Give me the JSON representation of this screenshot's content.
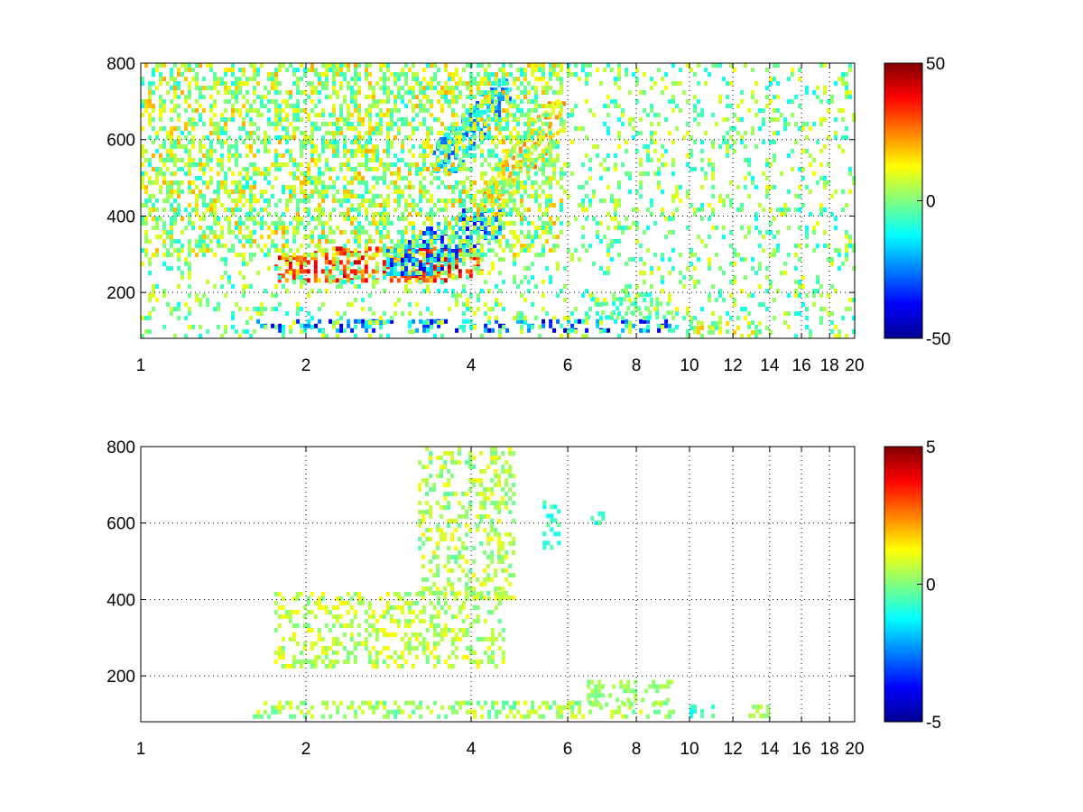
{
  "figure": {
    "background": "#ffffff",
    "colormap": "jet"
  },
  "chart_data": [
    {
      "type": "heatmap",
      "title": "",
      "xlabel": "",
      "ylabel": "",
      "xlim": [
        1,
        20
      ],
      "ylim": [
        80,
        800
      ],
      "x_scale": "log",
      "xticks": [
        1,
        2,
        4,
        6,
        8,
        10,
        12,
        14,
        16,
        18,
        20
      ],
      "xtick_labels": [
        "1",
        "2",
        "4",
        "6",
        "8",
        "10",
        "12",
        "14",
        "16",
        "18",
        "20"
      ],
      "yticks": [
        200,
        400,
        600,
        800
      ],
      "ytick_labels": [
        "200",
        "400",
        "600",
        "800"
      ],
      "grid": true,
      "colorbar": {
        "min": -50,
        "max": 50,
        "ticks": [
          -50,
          0,
          50
        ],
        "tick_labels": [
          "-50",
          "0",
          "50"
        ]
      },
      "features": [
        {
          "shape": "band",
          "x": [
            1.75,
            4.2
          ],
          "y": [
            230,
            320
          ],
          "value": 30,
          "spread": 15
        },
        {
          "shape": "band",
          "x": [
            2.8,
            4.6
          ],
          "y": [
            250,
            420
          ],
          "value": -25,
          "spread": 15
        },
        {
          "shape": "band",
          "x": [
            4.2,
            5.9
          ],
          "y": [
            420,
            700
          ],
          "value": 15,
          "spread": 12
        },
        {
          "shape": "band",
          "x": [
            3.4,
            4.7
          ],
          "y": [
            520,
            760
          ],
          "value": -18,
          "spread": 12
        },
        {
          "shape": "rect",
          "x": [
            1.6,
            9.4
          ],
          "y": [
            95,
            130
          ],
          "value": -25,
          "spread": 20
        },
        {
          "shape": "rect",
          "x": [
            6.5,
            9.3
          ],
          "y": [
            130,
            200
          ],
          "value": -5,
          "spread": 8
        },
        {
          "shape": "rect",
          "x": [
            10,
            14
          ],
          "y": [
            95,
            125
          ],
          "value": 5,
          "spread": 15
        },
        {
          "shape": "rect",
          "x": [
            1,
            5.8
          ],
          "y": [
            300,
            800
          ],
          "value": 6,
          "spread": 15
        },
        {
          "shape": "rect",
          "x": [
            1,
            20
          ],
          "y": [
            80,
            800
          ],
          "value": 0,
          "spread": 12
        }
      ]
    },
    {
      "type": "heatmap",
      "title": "",
      "xlabel": "",
      "ylabel": "",
      "xlim": [
        1,
        20
      ],
      "ylim": [
        80,
        800
      ],
      "x_scale": "log",
      "xticks": [
        1,
        2,
        4,
        6,
        8,
        10,
        12,
        14,
        16,
        18,
        20
      ],
      "xtick_labels": [
        "1",
        "2",
        "4",
        "6",
        "8",
        "10",
        "12",
        "14",
        "16",
        "18",
        "20"
      ],
      "yticks": [
        200,
        400,
        600,
        800
      ],
      "ytick_labels": [
        "200",
        "400",
        "600",
        "800"
      ],
      "grid": true,
      "colorbar": {
        "min": -5,
        "max": 5,
        "ticks": [
          -5,
          0,
          5
        ],
        "tick_labels": [
          "-5",
          "0",
          "5"
        ]
      },
      "features": [
        {
          "shape": "rect",
          "x": [
            1.75,
            4.6
          ],
          "y": [
            220,
            420
          ],
          "value": 0.6,
          "spread": 0.8
        },
        {
          "shape": "rect",
          "x": [
            3.2,
            4.8
          ],
          "y": [
            400,
            800
          ],
          "value": 0.5,
          "spread": 0.9
        },
        {
          "shape": "rect",
          "x": [
            5.4,
            5.8
          ],
          "y": [
            540,
            660
          ],
          "value": -0.8,
          "spread": 0.5
        },
        {
          "shape": "rect",
          "x": [
            6.6,
            7.0
          ],
          "y": [
            600,
            630
          ],
          "value": -0.6,
          "spread": 0.5
        },
        {
          "shape": "rect",
          "x": [
            1.6,
            9.4
          ],
          "y": [
            95,
            135
          ],
          "value": 0.3,
          "spread": 0.8
        },
        {
          "shape": "rect",
          "x": [
            6.5,
            9.3
          ],
          "y": [
            130,
            190
          ],
          "value": 0.2,
          "spread": 0.4
        },
        {
          "shape": "rect",
          "x": [
            10,
            11
          ],
          "y": [
            100,
            125
          ],
          "value": -0.8,
          "spread": 0.6
        },
        {
          "shape": "rect",
          "x": [
            12.8,
            14
          ],
          "y": [
            100,
            125
          ],
          "value": 0.4,
          "spread": 0.4
        }
      ]
    }
  ]
}
